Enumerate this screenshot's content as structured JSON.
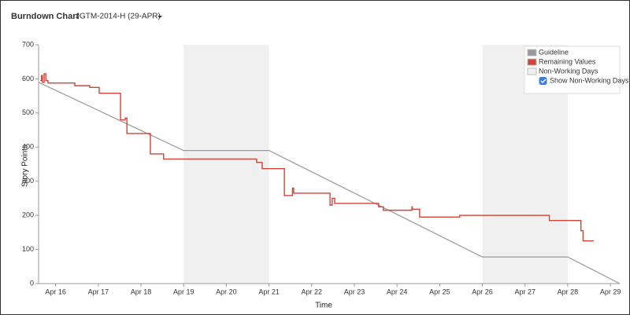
{
  "chart_data": {
    "type": "line",
    "title": "Burndown Chart",
    "subtitle": "JGTM-2014-H (29-APR)",
    "xlabel": "Time",
    "ylabel": "Story Points",
    "xlim": [
      15.6,
      29.22
    ],
    "ylim": [
      0,
      700
    ],
    "yticks": [
      0,
      100,
      200,
      300,
      400,
      500,
      600,
      700
    ],
    "xticks": [
      {
        "value": 16,
        "label": "Apr 16"
      },
      {
        "value": 17,
        "label": "Apr 17"
      },
      {
        "value": 18,
        "label": "Apr 18"
      },
      {
        "value": 19,
        "label": "Apr 19"
      },
      {
        "value": 20,
        "label": "Apr 20"
      },
      {
        "value": 21,
        "label": "Apr 21"
      },
      {
        "value": 22,
        "label": "Apr 22"
      },
      {
        "value": 23,
        "label": "Apr 23"
      },
      {
        "value": 24,
        "label": "Apr 24"
      },
      {
        "value": 25,
        "label": "Apr 25"
      },
      {
        "value": 26,
        "label": "Apr 26"
      },
      {
        "value": 27,
        "label": "Apr 27"
      },
      {
        "value": 28,
        "label": "Apr 28"
      },
      {
        "value": 29,
        "label": "Apr 29"
      }
    ],
    "legend": "top-right",
    "series": [
      {
        "name": "Guideline",
        "color": "#999999",
        "x": [
          15.6,
          19,
          21,
          26,
          28,
          29.22
        ],
        "values": [
          590,
          390,
          390,
          78,
          78,
          0
        ]
      },
      {
        "name": "Remaining Values",
        "color": "#d04437",
        "x": [
          15.64,
          15.67,
          15.67,
          15.69,
          15.69,
          15.73,
          15.73,
          15.77,
          15.77,
          15.82,
          15.82,
          16.45,
          16.45,
          16.8,
          16.8,
          17.02,
          17.02,
          17.52,
          17.52,
          17.63,
          17.63,
          17.67,
          17.67,
          18.22,
          18.22,
          18.53,
          18.53,
          20.71,
          20.71,
          20.84,
          20.84,
          21.36,
          21.36,
          21.55,
          21.55,
          21.58,
          21.58,
          22.43,
          22.43,
          22.48,
          22.48,
          22.54,
          22.54,
          23.57,
          23.57,
          23.68,
          23.68,
          24.35,
          24.35,
          24.36,
          24.36,
          24.53,
          24.53,
          25.47,
          25.47,
          27.57,
          27.57,
          28.31,
          28.31,
          28.36,
          28.36,
          28.61
        ],
        "values": [
          595,
          595,
          610,
          610,
          590,
          590,
          615,
          615,
          595,
          595,
          588,
          588,
          580,
          580,
          575,
          575,
          558,
          558,
          480,
          480,
          485,
          485,
          440,
          440,
          380,
          380,
          365,
          365,
          355,
          355,
          337,
          337,
          258,
          258,
          280,
          280,
          265,
          265,
          230,
          230,
          250,
          250,
          235,
          235,
          225,
          225,
          215,
          215,
          225,
          225,
          218,
          218,
          195,
          195,
          200,
          200,
          185,
          185,
          155,
          155,
          125,
          125
        ]
      }
    ],
    "non_working": {
      "name": "Non-Working Days",
      "color": "#f0f0f0",
      "spans": [
        [
          19,
          21
        ],
        [
          26,
          28
        ]
      ]
    },
    "toggle": {
      "label": "Show Non-Working Days",
      "checked": true
    }
  }
}
